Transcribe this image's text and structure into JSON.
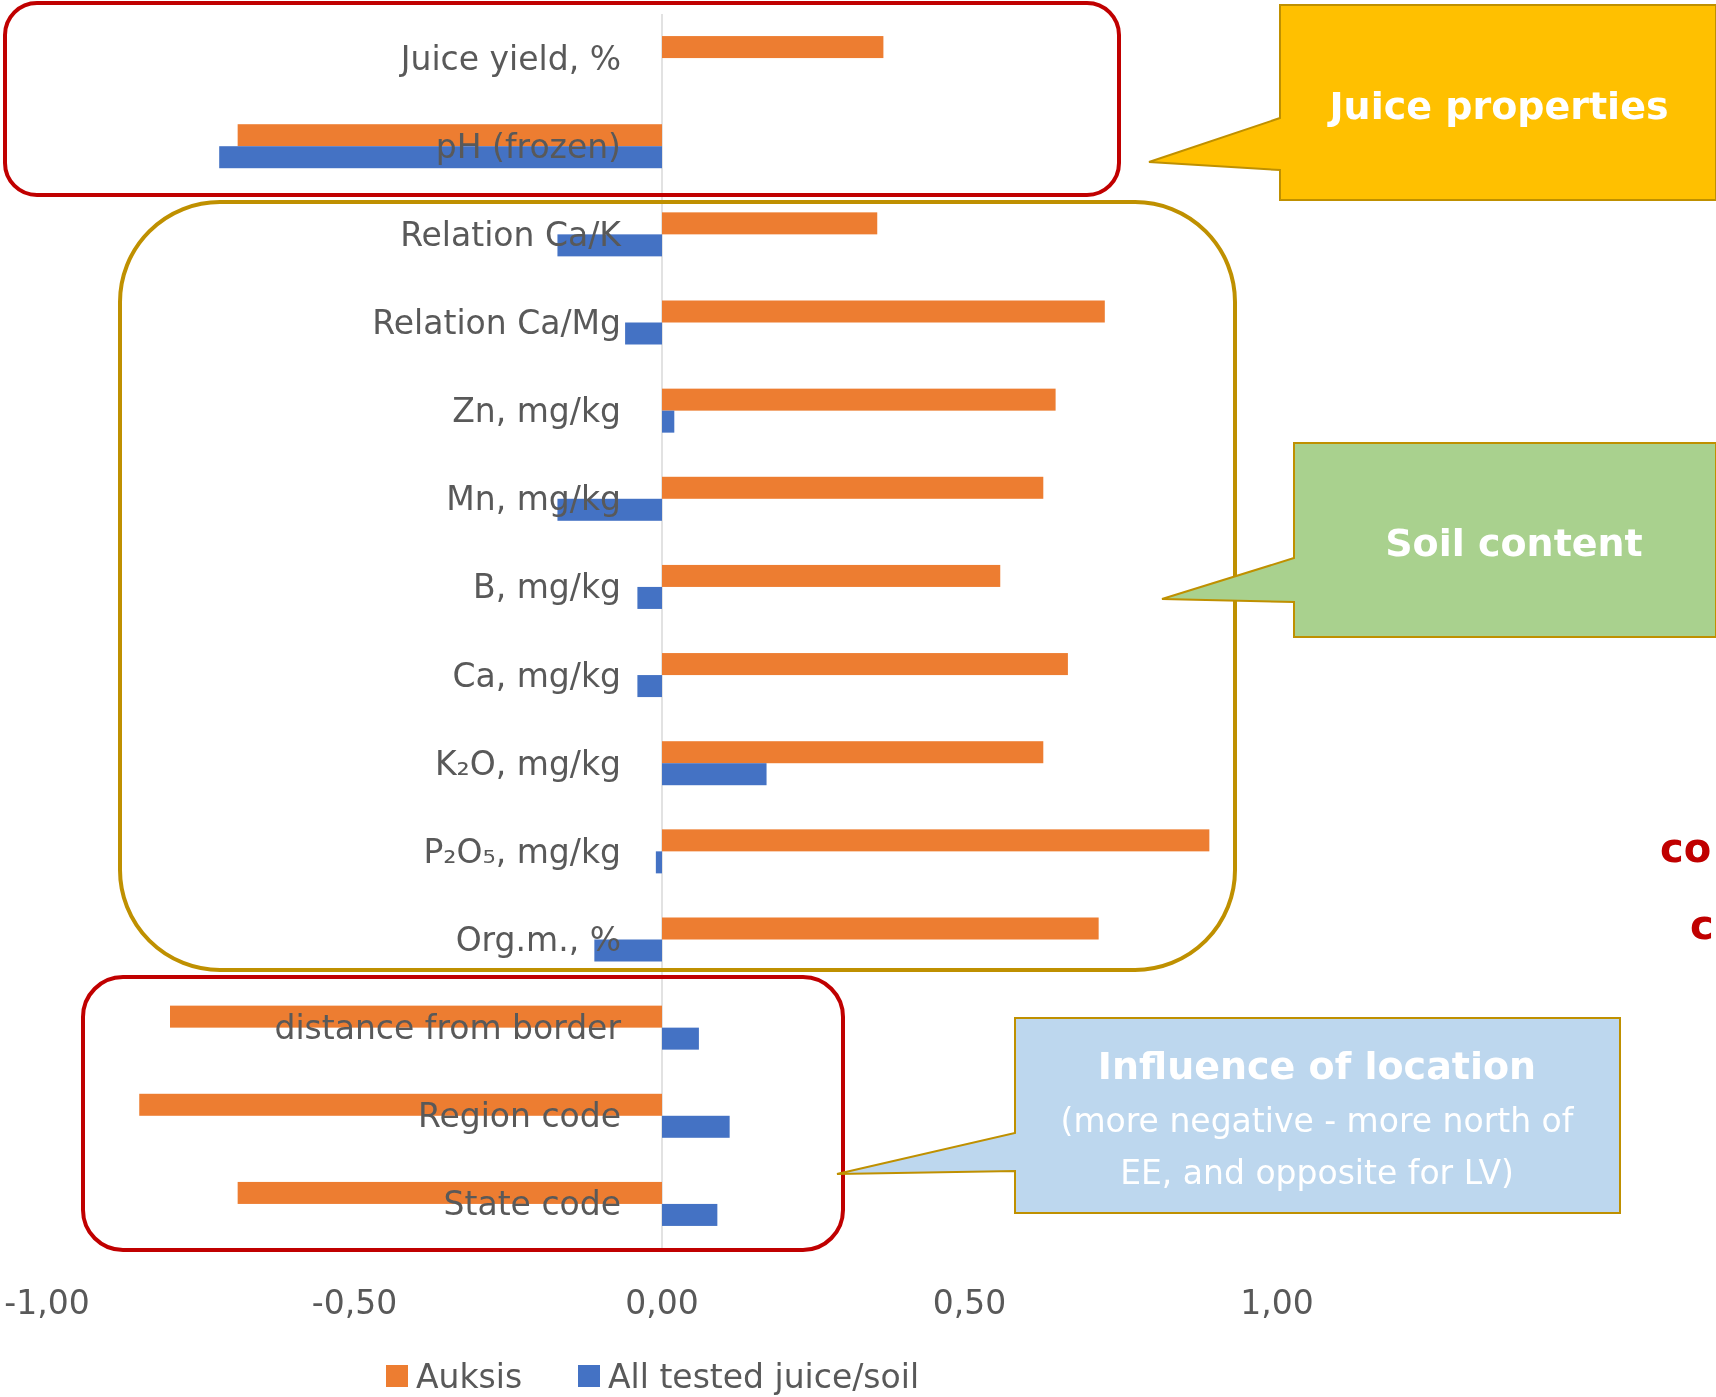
{
  "chart_data": {
    "type": "bar",
    "orientation": "horizontal",
    "categories": [
      "Juice yield, %",
      "pH (frozen)",
      "Relation Ca/K",
      "Relation Ca/Mg",
      "Zn, mg/kg",
      "Mn, mg/kg",
      "B, mg/kg",
      "Ca, mg/kg",
      "K₂O, mg/kg",
      "P₂O₅, mg/kg",
      "Org.m., %",
      "distance from border",
      "Region code",
      "State code"
    ],
    "series": [
      {
        "name": "Auksis",
        "color": "#ed7d31",
        "values": [
          0.36,
          -0.69,
          0.35,
          0.72,
          0.64,
          0.62,
          0.55,
          0.66,
          0.62,
          0.89,
          0.71,
          -0.8,
          -0.85,
          -0.69
        ]
      },
      {
        "name": "All tested juice/soil",
        "color": "#4472c4",
        "values": [
          null,
          -0.72,
          -0.17,
          -0.06,
          0.02,
          -0.17,
          -0.04,
          -0.04,
          0.17,
          -0.01,
          -0.11,
          0.06,
          0.11,
          0.09
        ]
      }
    ],
    "xlim": [
      -1,
      1
    ],
    "xticks": [
      {
        "value": -1,
        "label": "-1,00"
      },
      {
        "value": -0.5,
        "label": "-0,50"
      },
      {
        "value": 0,
        "label": "0,00"
      },
      {
        "value": 0.5,
        "label": "0,50"
      },
      {
        "value": 1,
        "label": "1,00"
      }
    ],
    "grid": false,
    "legend": "bottom",
    "annotations": [
      "Juice properties",
      "Soil content",
      "Influence of location",
      "(more negative - more north of EE, and opposite for LV)",
      "co",
      "c"
    ]
  }
}
